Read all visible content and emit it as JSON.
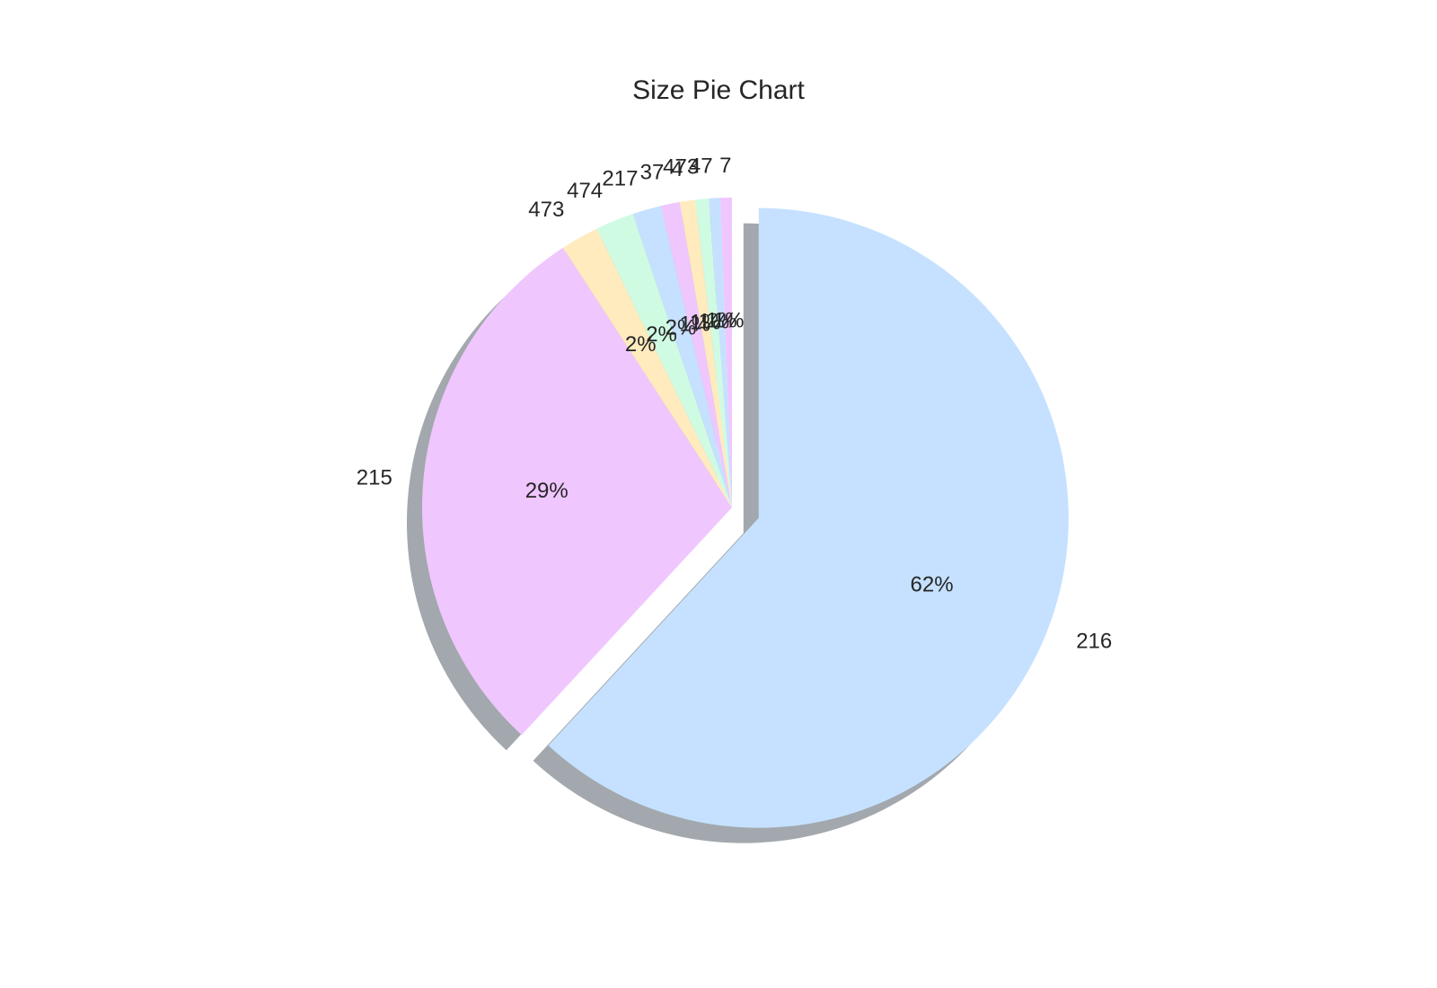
{
  "chart_data": {
    "type": "pie",
    "title": "Size Pie Chart",
    "start_angle_deg": 90,
    "direction": "clockwise",
    "shadow": true,
    "exploded": [
      "216"
    ],
    "slices": [
      {
        "label": "216",
        "value": 62,
        "pct_label": "62%",
        "color": "#c5e1ff"
      },
      {
        "label": "215",
        "value": 29,
        "pct_label": "29%",
        "color": "#f0c6ff"
      },
      {
        "label": "473",
        "value": 2,
        "pct_label": "2%",
        "color": "#ffebbe"
      },
      {
        "label": "474",
        "value": 2,
        "pct_label": "2%",
        "color": "#d0fbe3"
      },
      {
        "label": "217",
        "value": 1.5,
        "pct_label": "2%",
        "color": "#c5e1ff"
      },
      {
        "label": "37",
        "value": 1,
        "pct_label": "1%",
        "color": "#f0c6ff"
      },
      {
        "label": "4",
        "value": 0.8,
        "pct_label": "1%",
        "color": "#ffebbe"
      },
      {
        "label": "473",
        "value": 0.7,
        "pct_label": "1%",
        "color": "#d0fbe3"
      },
      {
        "label": "47",
        "value": 0.6,
        "pct_label": "1%",
        "color": "#c5e1ff"
      },
      {
        "label": "7",
        "value": 0.6,
        "pct_label": "1%",
        "color": "#f0c6ff"
      }
    ]
  }
}
